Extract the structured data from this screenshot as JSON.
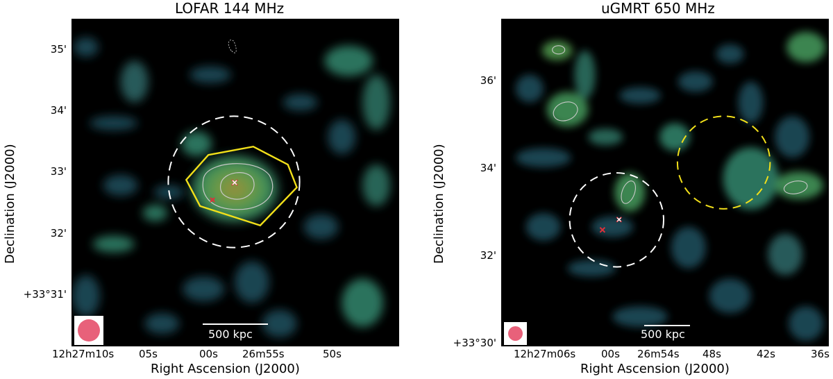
{
  "colors": {
    "background": "#000000",
    "emission_dark": "#1e4a57",
    "emission_mid": "#2f7a63",
    "emission_bright": "#4caf5a",
    "peak": "#8a8a3a",
    "contour": "#c9c9c9",
    "yellow": "#f2e01a",
    "white": "#ffffff",
    "marker": "#e0303a",
    "beam": "#e8617a"
  },
  "panels": [
    {
      "title": "LOFAR 144 MHz",
      "ylabel": "Declination (J2000)",
      "xlabel": "Right Ascension (J2000)",
      "yticks": [
        "35'",
        "34'",
        "33'",
        "32'",
        "+33°31'"
      ],
      "xticks": [
        "12h27m10s",
        "05s",
        "00s",
        "26m55s",
        "50s"
      ],
      "scalebar_label": "500 kpc",
      "beam_icon": "beam-ellipse"
    },
    {
      "title": "uGMRT 650 MHz",
      "ylabel": "Declination (J2000)",
      "xlabel": "Right Ascension (J2000)",
      "yticks": [
        "36'",
        "34'",
        "32'",
        "+33°30'"
      ],
      "xticks": [
        "12h27m06s",
        "00s",
        "26m54s",
        "48s",
        "42s",
        "36s"
      ],
      "scalebar_label": "500 kpc",
      "beam_icon": "beam-ellipse"
    }
  ]
}
